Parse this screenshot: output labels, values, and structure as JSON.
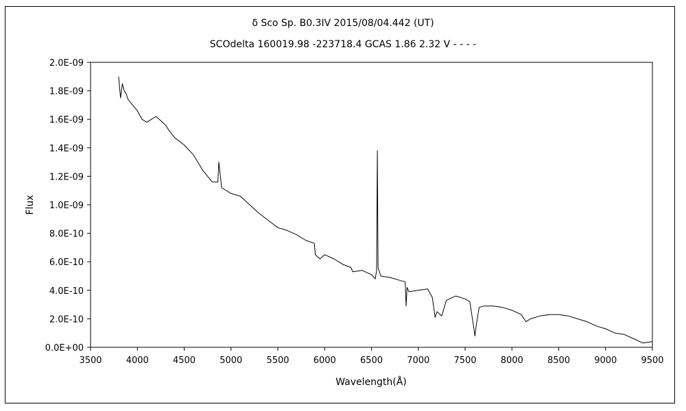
{
  "chart_data": {
    "type": "line",
    "title": "δ Sco    Sp. B0.3IV    2015/08/04.442 (UT)",
    "subtitle": "SCOdelta 160019.98 -223718.4 GCAS 1.86 2.32  V - - - -",
    "xlabel": "Wavelength(Å)",
    "ylabel": "Flux",
    "xlim": [
      3500,
      9500
    ],
    "ylim": [
      0,
      2e-09
    ],
    "x_ticks": [
      "3500",
      "4000",
      "4500",
      "5000",
      "5500",
      "6000",
      "6500",
      "7000",
      "7500",
      "8000",
      "8500",
      "9000",
      "9500"
    ],
    "y_ticks": [
      "0.0E+00",
      "2.0E-10",
      "4.0E-10",
      "6.0E-10",
      "8.0E-10",
      "1.0E-09",
      "1.2E-09",
      "1.4E-09",
      "1.6E-09",
      "1.8E-09",
      "2.0E-09"
    ],
    "grid": false,
    "legend": "none",
    "series": [
      {
        "color": "#000000",
        "x": [
          3800,
          3820,
          3840,
          3860,
          3880,
          3900,
          3950,
          4000,
          4050,
          4100,
          4150,
          4200,
          4250,
          4300,
          4340,
          4400,
          4500,
          4600,
          4700,
          4800,
          4860,
          4870,
          4900,
          5000,
          5100,
          5200,
          5300,
          5400,
          5500,
          5600,
          5700,
          5800,
          5890,
          5900,
          5950,
          6000,
          6100,
          6200,
          6280,
          6300,
          6400,
          6500,
          6540,
          6555,
          6563,
          6570,
          6600,
          6700,
          6800,
          6860,
          6870,
          6880,
          6900,
          7000,
          7100,
          7150,
          7180,
          7200,
          7250,
          7300,
          7400,
          7500,
          7550,
          7590,
          7605,
          7620,
          7650,
          7700,
          7800,
          7900,
          8000,
          8100,
          8150,
          8200,
          8300,
          8400,
          8500,
          8600,
          8700,
          8800,
          8900,
          9000,
          9100,
          9200,
          9300,
          9400,
          9500
        ],
        "y": [
          1.9e-09,
          1.75e-09,
          1.85e-09,
          1.8e-09,
          1.78e-09,
          1.74e-09,
          1.7e-09,
          1.66e-09,
          1.6e-09,
          1.58e-09,
          1.6e-09,
          1.62e-09,
          1.59e-09,
          1.56e-09,
          1.52e-09,
          1.47e-09,
          1.42e-09,
          1.35e-09,
          1.24e-09,
          1.16e-09,
          1.16e-09,
          1.3e-09,
          1.12e-09,
          1.08e-09,
          1.06e-09,
          1e-09,
          9.4e-10,
          8.9e-10,
          8.4e-10,
          8.2e-10,
          7.9e-10,
          7.5e-10,
          7.3e-10,
          6.5e-10,
          6.2e-10,
          6.5e-10,
          6.2e-10,
          5.8e-10,
          5.6e-10,
          5.3e-10,
          5.4e-10,
          5.1e-10,
          4.8e-10,
          5.4e-10,
          1.38e-09,
          5.6e-10,
          5e-10,
          4.9e-10,
          4.7e-10,
          4.6e-10,
          2.9e-10,
          4.2e-10,
          3.9e-10,
          4e-10,
          4.1e-10,
          3.5e-10,
          2.1e-10,
          2.5e-10,
          2.2e-10,
          3.3e-10,
          3.6e-10,
          3.4e-10,
          3.2e-10,
          1.5e-10,
          8e-11,
          1.6e-10,
          2.8e-10,
          2.9e-10,
          2.9e-10,
          2.8e-10,
          2.6e-10,
          2.3e-10,
          1.8e-10,
          2e-10,
          2.2e-10,
          2.3e-10,
          2.3e-10,
          2.2e-10,
          2e-10,
          1.8e-10,
          1.5e-10,
          1.3e-10,
          1e-10,
          9e-11,
          6e-11,
          3e-11,
          4e-11
        ]
      }
    ]
  }
}
